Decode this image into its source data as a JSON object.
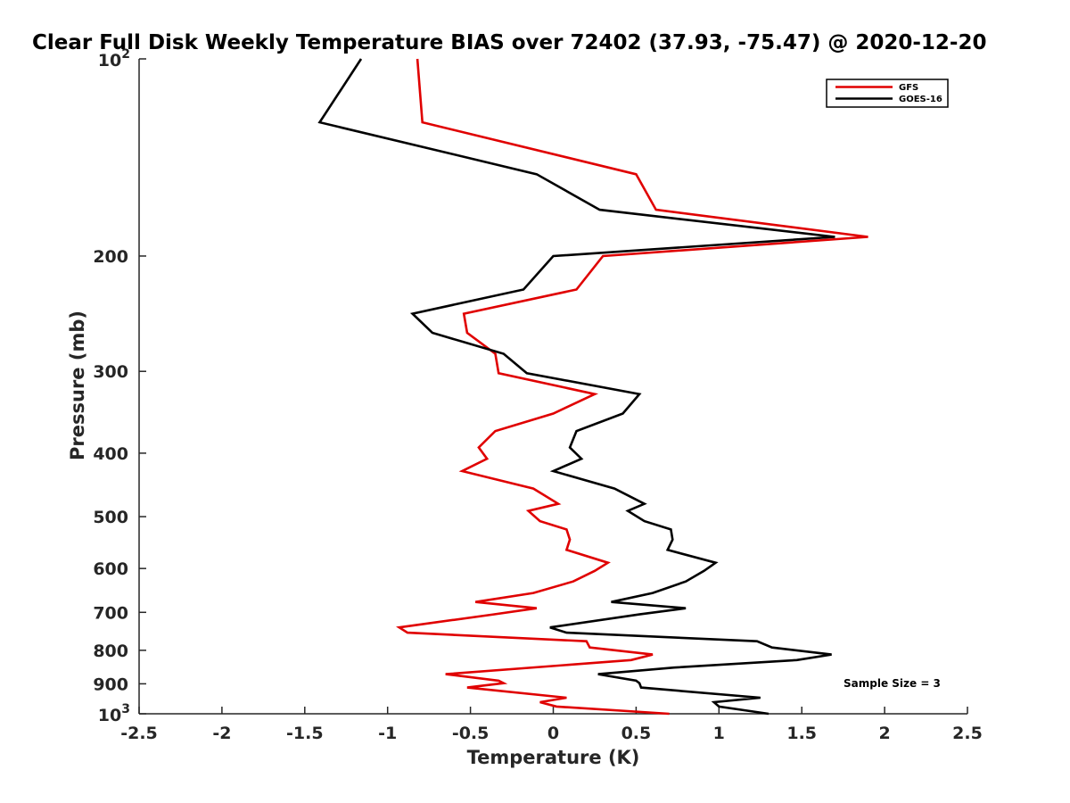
{
  "chart_data": {
    "type": "line",
    "title": "Clear Full Disk Weekly Temperature BIAS over 72402 (37.93, -75.47) @ 2020-12-20",
    "xlabel": "Temperature (K)",
    "ylabel": "Pressure (mb)",
    "xlim": [
      -2.5,
      2.5
    ],
    "ylim": [
      100,
      1000
    ],
    "y_scale": "log",
    "y_reversed": true,
    "grid": false,
    "legend_position": "top-right",
    "x_ticks": [
      -2.5,
      -2,
      -1.5,
      -1,
      -0.5,
      0,
      0.5,
      1,
      1.5,
      2,
      2.5
    ],
    "x_tick_labels": [
      "-2.5",
      "-2",
      "-1.5",
      "-1",
      "-0.5",
      "0",
      "0.5",
      "1",
      "1.5",
      "2",
      "2.5"
    ],
    "y_ticks": [
      {
        "value": 100,
        "base": "10",
        "exp": "2"
      },
      {
        "value": 200,
        "label": "200"
      },
      {
        "value": 300,
        "label": "300"
      },
      {
        "value": 400,
        "label": "400"
      },
      {
        "value": 500,
        "label": "500"
      },
      {
        "value": 600,
        "label": "600"
      },
      {
        "value": 700,
        "label": "700"
      },
      {
        "value": 800,
        "label": "800"
      },
      {
        "value": 900,
        "label": "900"
      },
      {
        "value": 1000,
        "base": "10",
        "exp": "3"
      }
    ],
    "annotation": "Sample Size = 3",
    "series": [
      {
        "name": "GFS",
        "color": "#e00000",
        "points": [
          [
            -0.82,
            100
          ],
          [
            -0.79,
            125
          ],
          [
            0.5,
            150
          ],
          [
            0.62,
            170
          ],
          [
            1.9,
            187
          ],
          [
            0.3,
            200
          ],
          [
            0.14,
            225
          ],
          [
            -0.54,
            245
          ],
          [
            -0.52,
            262
          ],
          [
            -0.35,
            282
          ],
          [
            -0.33,
            302
          ],
          [
            0.25,
            325
          ],
          [
            0.0,
            348
          ],
          [
            -0.35,
            370
          ],
          [
            -0.45,
            392
          ],
          [
            -0.4,
            408
          ],
          [
            -0.55,
            426
          ],
          [
            -0.12,
            453
          ],
          [
            0.03,
            478
          ],
          [
            -0.15,
            490
          ],
          [
            -0.08,
            508
          ],
          [
            0.08,
            523
          ],
          [
            0.1,
            542
          ],
          [
            0.08,
            562
          ],
          [
            0.33,
            588
          ],
          [
            0.25,
            605
          ],
          [
            0.12,
            628
          ],
          [
            -0.12,
            654
          ],
          [
            -0.47,
            675
          ],
          [
            -0.1,
            690
          ],
          [
            -0.36,
            705
          ],
          [
            -0.93,
            738
          ],
          [
            -0.88,
            752
          ],
          [
            0.2,
            775
          ],
          [
            0.22,
            792
          ],
          [
            0.6,
            812
          ],
          [
            0.47,
            828
          ],
          [
            -0.65,
            870
          ],
          [
            -0.33,
            890
          ],
          [
            -0.3,
            898
          ],
          [
            -0.52,
            912
          ],
          [
            0.08,
            945
          ],
          [
            -0.08,
            960
          ],
          [
            0.02,
            975
          ],
          [
            0.7,
            1000
          ]
        ]
      },
      {
        "name": "GOES-16",
        "color": "#000000",
        "points": [
          [
            -1.16,
            100
          ],
          [
            -1.41,
            125
          ],
          [
            -0.1,
            150
          ],
          [
            0.28,
            170
          ],
          [
            1.7,
            187
          ],
          [
            0.0,
            200
          ],
          [
            -0.18,
            225
          ],
          [
            -0.85,
            245
          ],
          [
            -0.73,
            262
          ],
          [
            -0.3,
            282
          ],
          [
            -0.16,
            302
          ],
          [
            0.52,
            325
          ],
          [
            0.42,
            348
          ],
          [
            0.14,
            370
          ],
          [
            0.1,
            392
          ],
          [
            0.17,
            408
          ],
          [
            0.0,
            426
          ],
          [
            0.37,
            453
          ],
          [
            0.55,
            478
          ],
          [
            0.45,
            490
          ],
          [
            0.55,
            508
          ],
          [
            0.71,
            523
          ],
          [
            0.72,
            542
          ],
          [
            0.69,
            562
          ],
          [
            0.98,
            588
          ],
          [
            0.91,
            605
          ],
          [
            0.8,
            628
          ],
          [
            0.6,
            654
          ],
          [
            0.35,
            675
          ],
          [
            0.8,
            690
          ],
          [
            0.52,
            705
          ],
          [
            -0.02,
            738
          ],
          [
            0.08,
            752
          ],
          [
            1.23,
            775
          ],
          [
            1.32,
            792
          ],
          [
            1.68,
            812
          ],
          [
            1.47,
            828
          ],
          [
            0.73,
            850
          ],
          [
            0.27,
            870
          ],
          [
            0.5,
            890
          ],
          [
            0.52,
            898
          ],
          [
            0.53,
            912
          ],
          [
            1.25,
            945
          ],
          [
            0.97,
            960
          ],
          [
            1.0,
            975
          ],
          [
            1.3,
            1000
          ]
        ]
      }
    ]
  }
}
